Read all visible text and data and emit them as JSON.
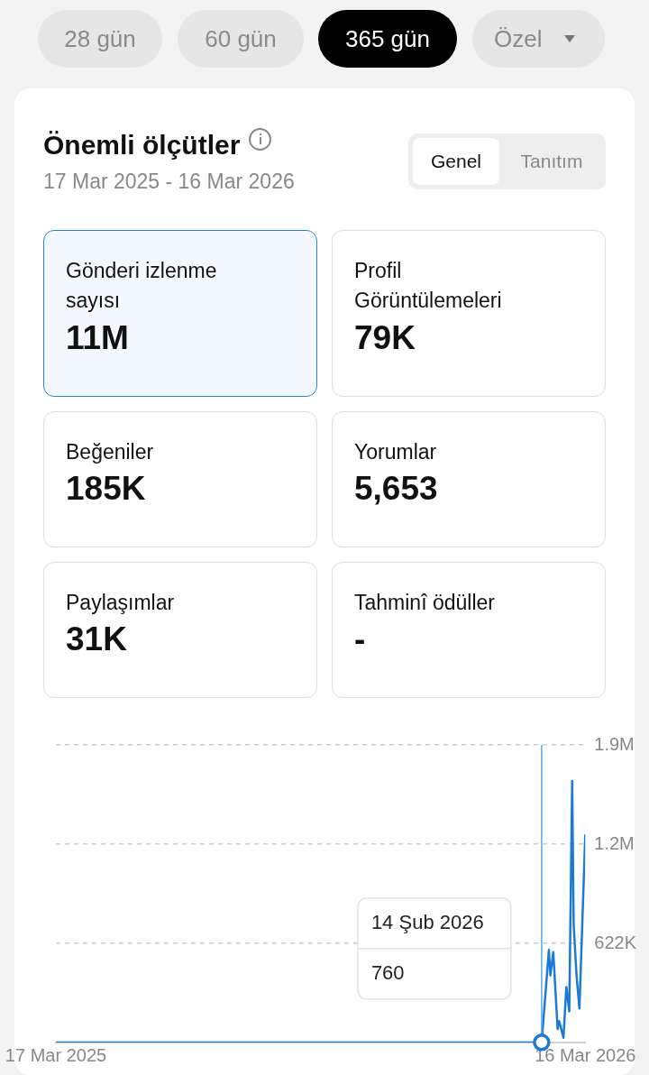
{
  "chart_data": [
    {
      "type": "other",
      "title": "Önemli ölçütler",
      "subtitle": "17 Mar 2025 - 16 Mar 2026",
      "annotations": [
        "28 gün",
        "60 gün",
        "365 gün",
        "Özel",
        "Genel",
        "Tanıtım"
      ],
      "categories": [
        "Gönderi izlenme sayısı",
        "Profil Görüntülemeleri",
        "Beğeniler",
        "Yorumlar",
        "Paylaşımlar",
        "Tahminî ödüller"
      ],
      "value_labels": [
        "11M",
        "79K",
        "185K",
        "5,653",
        "31K",
        "-"
      ]
    },
    {
      "type": "line",
      "x": [
        "2025-03-17",
        "2025-06-01",
        "2025-09-01",
        "2025-12-01",
        "2026-02-13",
        "2026-02-14",
        "2026-02-19",
        "2026-02-20",
        "2026-02-22",
        "2026-02-25",
        "2026-02-26",
        "2026-02-27",
        "2026-03-01",
        "2026-03-03",
        "2026-03-05",
        "2026-03-07",
        "2026-03-08",
        "2026-03-10",
        "2026-03-12",
        "2026-03-16"
      ],
      "series": [
        {
          "color": "#1a7ad6",
          "values": [
            0,
            0,
            0,
            0,
            0,
            760,
            581000,
            421000,
            567000,
            85000,
            134000,
            104000,
            30000,
            348000,
            195000,
            1640000,
            744000,
            421000,
            213000,
            1305000
          ]
        }
      ],
      "xlim": [
        "2025-03-17",
        "2026-03-16"
      ],
      "xticks": [
        {
          "value": "2025-03-17",
          "label": "17 Mar 2025"
        },
        {
          "value": "2026-03-16",
          "label": "16 Mar 2026"
        }
      ],
      "ylim": [
        0,
        1866000
      ],
      "yticks": [
        {
          "value": 622000,
          "label": "622K"
        },
        {
          "value": 1244000,
          "label": "1.2M"
        },
        {
          "value": 1866000,
          "label": "1.9M"
        }
      ],
      "grid": "y",
      "legend": false,
      "marker": "none",
      "line_style": "solid",
      "ref_lines": [
        {
          "axis": "x",
          "value": "2026-02-14",
          "color": "#5aa6e8"
        }
      ],
      "annotations": [
        "14 Şub 2026",
        "760"
      ]
    }
  ]
}
